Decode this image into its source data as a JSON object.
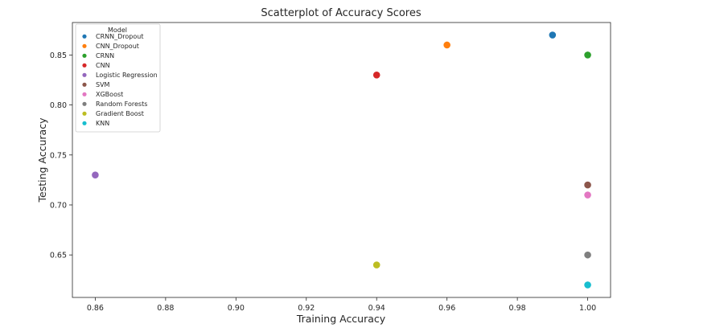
{
  "chart_data": {
    "type": "scatter",
    "title": "Scatterplot of Accuracy Scores",
    "xlabel": "Training Accuracy",
    "ylabel": "Testing Accuracy",
    "xlim": [
      0.8535,
      1.0065
    ],
    "ylim": [
      0.6075,
      0.8825
    ],
    "xticks": [
      0.86,
      0.88,
      0.9,
      0.92,
      0.94,
      0.96,
      0.98,
      1.0
    ],
    "yticks": [
      0.65,
      0.7,
      0.75,
      0.8,
      0.85
    ],
    "xtick_labels": [
      "0.86",
      "0.88",
      "0.90",
      "0.92",
      "0.94",
      "0.96",
      "0.98",
      "1.00"
    ],
    "ytick_labels": [
      "0.65",
      "0.70",
      "0.75",
      "0.80",
      "0.85"
    ],
    "grid": false,
    "legend": {
      "title": "Model",
      "placement": "top-left"
    },
    "series": [
      {
        "name": "CRNN_Dropout",
        "color": "#1f77b4",
        "x": 0.99,
        "y": 0.87
      },
      {
        "name": "CNN_Dropout",
        "color": "#ff7f0e",
        "x": 0.96,
        "y": 0.86
      },
      {
        "name": "CRNN",
        "color": "#2ca02c",
        "x": 1.0,
        "y": 0.85
      },
      {
        "name": "CNN",
        "color": "#d62728",
        "x": 0.94,
        "y": 0.83
      },
      {
        "name": "Logistic Regression",
        "color": "#9467bd",
        "x": 0.86,
        "y": 0.73
      },
      {
        "name": "SVM",
        "color": "#8c564b",
        "x": 1.0,
        "y": 0.72
      },
      {
        "name": "XGBoost",
        "color": "#e377c2",
        "x": 1.0,
        "y": 0.71
      },
      {
        "name": "Random Forests",
        "color": "#7f7f7f",
        "x": 1.0,
        "y": 0.65
      },
      {
        "name": "Gradient Boost",
        "color": "#bcbd22",
        "x": 0.94,
        "y": 0.64
      },
      {
        "name": "KNN",
        "color": "#17becf",
        "x": 1.0,
        "y": 0.62
      }
    ]
  }
}
